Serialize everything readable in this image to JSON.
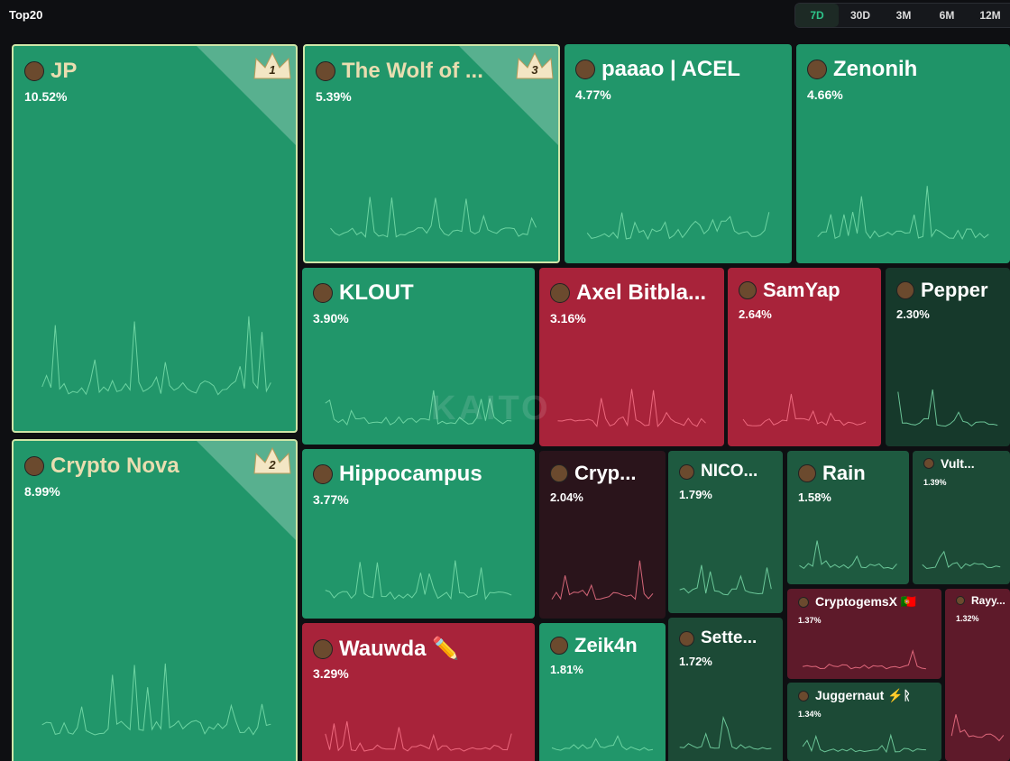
{
  "header": {
    "title": "Top20",
    "tabs": [
      "7D",
      "30D",
      "3M",
      "6M",
      "12M"
    ],
    "active_tab": "7D"
  },
  "watermark": "KAITO",
  "tiles": [
    {
      "name": "JP",
      "share": "10.52%",
      "rank": "1"
    },
    {
      "name": "Crypto Nova",
      "share": "8.99%",
      "rank": "2"
    },
    {
      "name": "The Wolf of ...",
      "share": "5.39%",
      "rank": "3"
    },
    {
      "name": "paaao | ACEL",
      "share": "4.77%"
    },
    {
      "name": "Zenonih",
      "share": "4.66%"
    },
    {
      "name": "KLOUT",
      "share": "3.90%"
    },
    {
      "name": "Axel Bitbla...",
      "share": "3.16%"
    },
    {
      "name": "SamYap",
      "share": "2.64%"
    },
    {
      "name": "Pepper",
      "share": "2.30%"
    },
    {
      "name": "Hippocampus",
      "share": "3.77%"
    },
    {
      "name": "Cryp...",
      "share": "2.04%"
    },
    {
      "name": "NICO...",
      "share": "1.79%"
    },
    {
      "name": "Rain",
      "share": "1.58%"
    },
    {
      "name": "Vult...",
      "share": "1.39%"
    },
    {
      "name": "CryptogemsX 🇵🇹",
      "share": "1.37%"
    },
    {
      "name": "Rayy...",
      "share": "1.32%"
    },
    {
      "name": "Juggernaut ⚡ᚱ",
      "share": "1.34%"
    },
    {
      "name": "Wauwda ✏️",
      "share": "3.29%"
    },
    {
      "name": "Zeik4n",
      "share": "1.81%"
    },
    {
      "name": "Sette...",
      "share": "1.72%"
    }
  ]
}
